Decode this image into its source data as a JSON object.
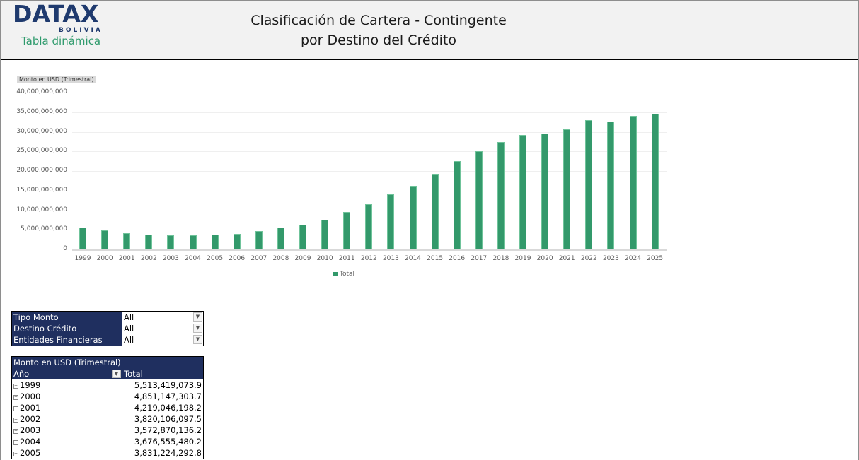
{
  "header": {
    "logo_text": "DATAX",
    "logo_sub": "BOLIVIA",
    "logo_tag": "Tabla dinámica",
    "title_line1": "Clasificación de Cartera - Contingente",
    "title_line2": "por Destino del Crédito"
  },
  "chart_tag": "Monto en USD (Trimestral)",
  "chart_data": {
    "type": "bar",
    "title": "",
    "xlabel": "",
    "ylabel": "Monto en USD (Trimestral)",
    "ylim": [
      0,
      40000000000
    ],
    "yticks": [
      "0",
      "5,000,000,000",
      "10,000,000,000",
      "15,000,000,000",
      "20,000,000,000",
      "25,000,000,000",
      "30,000,000,000",
      "35,000,000,000",
      "40,000,000,000"
    ],
    "categories": [
      "1999",
      "2000",
      "2001",
      "2002",
      "2003",
      "2004",
      "2005",
      "2006",
      "2007",
      "2008",
      "2009",
      "2010",
      "2011",
      "2012",
      "2013",
      "2014",
      "2015",
      "2016",
      "2017",
      "2018",
      "2019",
      "2020",
      "2021",
      "2022",
      "2023",
      "2024",
      "2025"
    ],
    "series": [
      {
        "name": "Total",
        "color": "#33996b",
        "values": [
          5513419073.9,
          4851147303.7,
          4219046198.2,
          3820106097.5,
          3572870136.2,
          3676555480.2,
          3831224292.8,
          4000000000,
          4600000000,
          5600000000,
          6300000000,
          7600000000,
          9600000000,
          11600000000,
          14100000000,
          16300000000,
          19300000000,
          22600000000,
          25000000000,
          27400000000,
          29100000000,
          29600000000,
          30600000000,
          32900000000,
          32600000000,
          34100000000,
          34600000000
        ]
      }
    ],
    "legend": [
      "Total"
    ],
    "legend_position": "bottom",
    "grid": true
  },
  "filters": [
    {
      "label": "Tipo Monto",
      "value": "All"
    },
    {
      "label": "Destino Crédito",
      "value": "All"
    },
    {
      "label": "Entidades Financieras",
      "value": "All"
    }
  ],
  "pivot": {
    "header_title": "Monto en USD (Trimestral)",
    "row_header": "Año",
    "col_header": "Total",
    "rows": [
      {
        "year": "1999",
        "total": "5,513,419,073.9"
      },
      {
        "year": "2000",
        "total": "4,851,147,303.7"
      },
      {
        "year": "2001",
        "total": "4,219,046,198.2"
      },
      {
        "year": "2002",
        "total": "3,820,106,097.5"
      },
      {
        "year": "2003",
        "total": "3,572,870,136.2"
      },
      {
        "year": "2004",
        "total": "3,676,555,480.2"
      },
      {
        "year": "2005",
        "total": "3,831,224,292.8"
      }
    ]
  }
}
